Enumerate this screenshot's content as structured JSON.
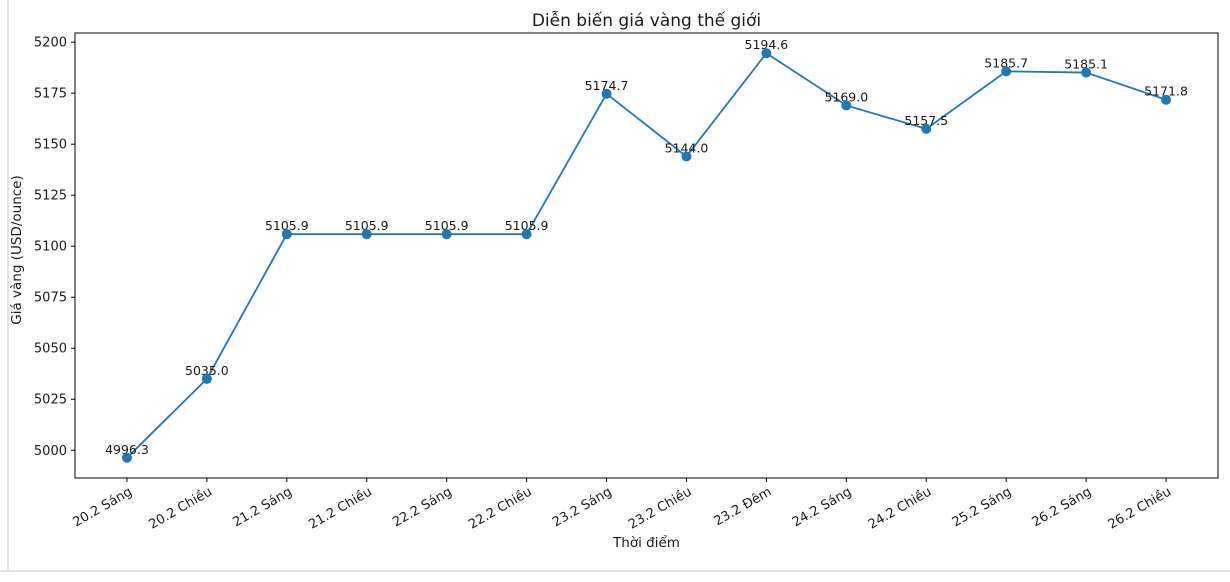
{
  "page": {
    "background": "#ffffff",
    "edge_border_color": "#e4e4e4"
  },
  "chart_data": {
    "type": "line",
    "title": "Diễn biến giá vàng thế giới",
    "xlabel": "Thời điểm",
    "ylabel": "Giá vàng (USD/ounce)",
    "categories": [
      "20.2 Sáng",
      "20.2 Chiều",
      "21.2 Sáng",
      "21.2 Chiều",
      "22.2 Sáng",
      "22.2 Chiều",
      "23.2 Sáng",
      "23.2 Chiều",
      "23.2 Đêm",
      "24.2 Sáng",
      "24.2 Chiều",
      "25.2 Sáng",
      "26.2 Sáng",
      "26.2 Chiều"
    ],
    "values": [
      4996.3,
      5035.0,
      5105.9,
      5105.9,
      5105.9,
      5105.9,
      5174.7,
      5144.0,
      5194.6,
      5169.0,
      5157.5,
      5185.7,
      5185.1,
      5171.8
    ],
    "point_labels": [
      "4996.3",
      "5035.0",
      "5105.9",
      "5105.9",
      "5105.9",
      "5105.9",
      "5174.7",
      "5144.0",
      "5194.6",
      "5169.0",
      "5157.5",
      "5185.7",
      "5185.1",
      "5171.8"
    ],
    "yticks": [
      5000,
      5025,
      5050,
      5075,
      5100,
      5125,
      5150,
      5175,
      5200
    ],
    "ylim": [
      4986.4,
      5204.5
    ],
    "line_color": "#1f77b4",
    "marker": "circle",
    "grid": false,
    "legend": "none",
    "x_tick_rotation_deg": 30
  }
}
